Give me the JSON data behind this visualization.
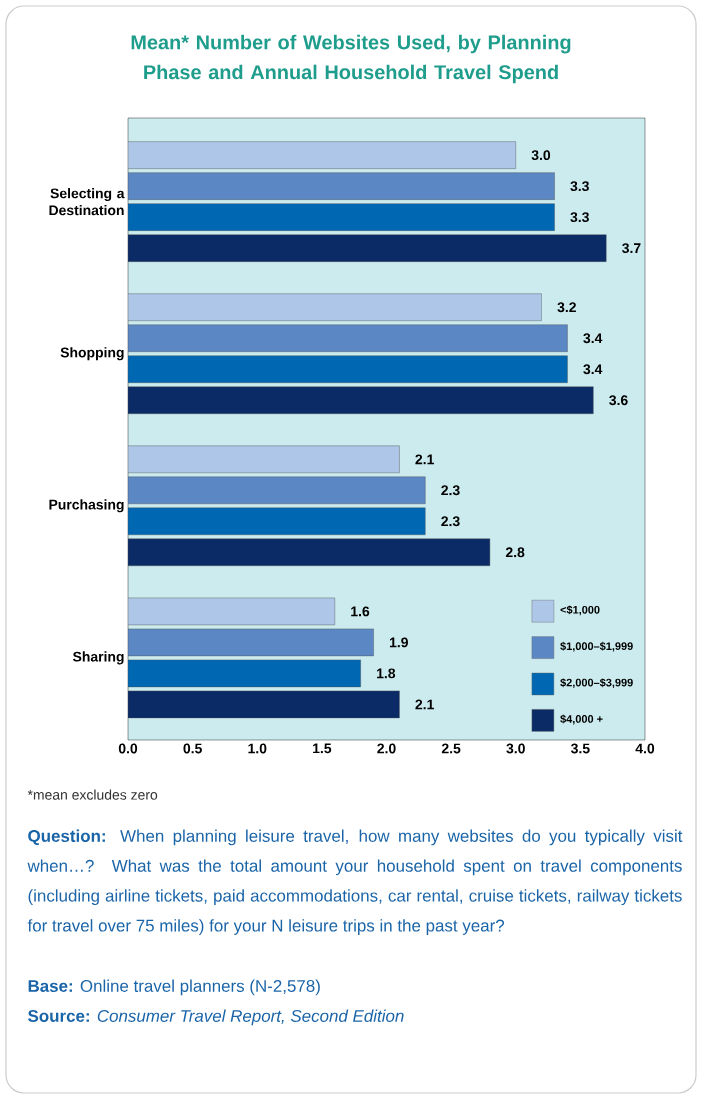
{
  "chart_data": {
    "type": "bar",
    "orientation": "horizontal",
    "title": "Mean* Number of Websites Used, by Planning Phase and Annual Household Travel Spend",
    "categories": [
      "Selecting a Destination",
      "Shopping",
      "Purchasing",
      "Sharing"
    ],
    "series": [
      {
        "name": "<$1,000",
        "color": "#aec6e8",
        "values": [
          3.0,
          3.2,
          2.1,
          1.6
        ],
        "value_labels": [
          "3.0",
          "3.2",
          "2.1",
          "1.6"
        ]
      },
      {
        "name": "$1,000–$1,999",
        "color": "#5b87c5",
        "values": [
          3.3,
          3.4,
          2.3,
          1.9
        ],
        "value_labels": [
          "3.3",
          "3.4",
          "2.3",
          "1.9"
        ]
      },
      {
        "name": "$2,000–$3,999",
        "color": "#0068b3",
        "values": [
          3.3,
          3.4,
          2.3,
          1.8
        ],
        "value_labels": [
          "3.3",
          "3.4",
          "2.3",
          "1.8"
        ]
      },
      {
        "name": "$4,000 +",
        "color": "#0b2b66",
        "values": [
          3.7,
          3.6,
          2.8,
          2.1
        ],
        "value_labels": [
          "3.7",
          "3.6",
          "2.8",
          "2.1"
        ]
      }
    ],
    "xlim": [
      0,
      4
    ],
    "xticks": [
      {
        "value": 0,
        "label": "0.0"
      },
      0.5,
      {
        "value": 1,
        "label": "1.0"
      },
      1.5,
      {
        "value": 2,
        "label": "2.0"
      },
      2.5,
      {
        "value": 3,
        "label": "3.0"
      },
      3.5,
      {
        "value": 4,
        "label": "4.0"
      }
    ],
    "legend": "bottom right",
    "annotations": [
      "*mean excludes zero",
      "**Question:** When planning leisure travel, how many websites do you typically visit when…? What was the total amount your household spent on travel components (including airline tickets, paid accommodations, car rental, cruise tickets, railway tickets for travel over 75 miles) for your N leisure trips in the past year?",
      "**Base:** Online travel planners (N-2,578)",
      "**Source:** *Consumer Travel Report, Second Edition*"
    ]
  }
}
